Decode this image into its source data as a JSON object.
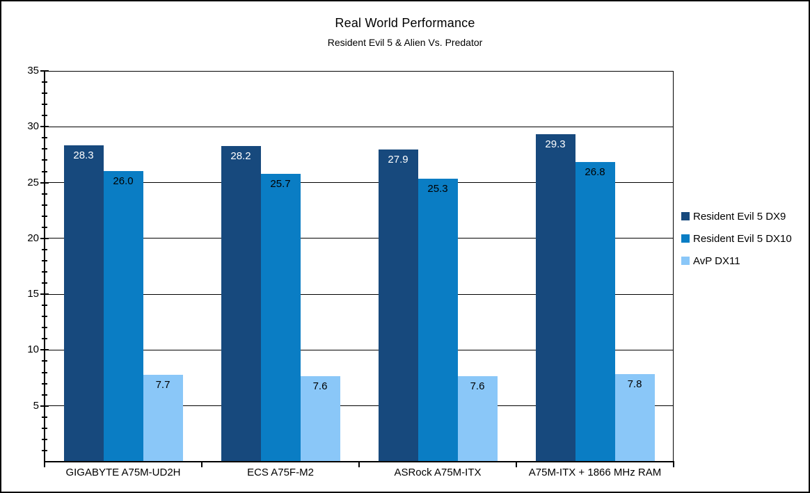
{
  "chart": {
    "title": "Real World Performance",
    "subtitle": "Resident Evil 5 & Alien Vs. Predator"
  },
  "chart_data": {
    "type": "bar",
    "title": "Real World Performance",
    "subtitle": "Resident Evil 5 & Alien Vs. Predator",
    "categories": [
      "GIGABYTE A75M-UD2H",
      "ECS A75F-M2",
      "ASRock A75M-ITX",
      "A75M-ITX + 1866 MHz RAM"
    ],
    "series": [
      {
        "name": "Resident Evil 5 DX9",
        "color": "#17497D",
        "label_color": "#FFFFFF",
        "values": [
          28.3,
          28.2,
          27.9,
          29.3
        ]
      },
      {
        "name": "Resident Evil 5 DX10",
        "color": "#0A7DC4",
        "label_color": "#000000",
        "values": [
          26.0,
          25.7,
          25.3,
          26.8
        ]
      },
      {
        "name": "AvP DX11",
        "color": "#8AC7F8",
        "label_color": "#000000",
        "values": [
          7.7,
          7.6,
          7.6,
          7.8
        ]
      }
    ],
    "value_decimals": 1,
    "xlabel": "",
    "ylabel": "",
    "ylim": [
      0,
      35
    ],
    "y_major_ticks": [
      5,
      10,
      15,
      20,
      25,
      30,
      35
    ],
    "y_minor_step": 1,
    "grid": true,
    "legend_position": "right",
    "background": "#FFFFFF",
    "axis_color": "#000000"
  }
}
